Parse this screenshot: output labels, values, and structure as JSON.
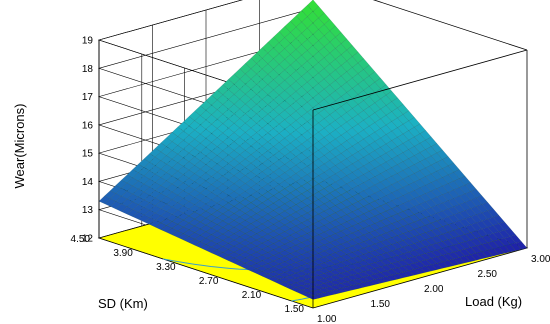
{
  "chart_data": {
    "type": "surface3d",
    "zlabel": "Wear(Microns)",
    "xlabel": "Load (Kg)",
    "ylabel": "SD (Km)",
    "x_ticks": [
      "1.00",
      "1.50",
      "2.00",
      "2.50",
      "3.00"
    ],
    "y_ticks": [
      "1.50",
      "2.10",
      "2.70",
      "3.30",
      "3.90",
      "4.50"
    ],
    "z_ticks": [
      "12",
      "13",
      "14",
      "15",
      "16",
      "17",
      "18",
      "19"
    ],
    "xlim": [
      1.0,
      3.0
    ],
    "ylim": [
      1.5,
      4.5
    ],
    "zlim": [
      12,
      19
    ],
    "surface_corners": [
      {
        "load": 1.0,
        "sd": 1.5,
        "wear": 12.3
      },
      {
        "load": 3.0,
        "sd": 1.5,
        "wear": 12.0
      },
      {
        "load": 1.0,
        "sd": 4.5,
        "wear": 13.3
      },
      {
        "load": 3.0,
        "sd": 4.5,
        "wear": 18.3
      }
    ],
    "colors": {
      "floor": "#ffff00",
      "surface_low": "#1f1fa8",
      "surface_mid": "#1cb0c4",
      "surface_high": "#33e033",
      "mesh": "#0a3a3a",
      "contour": "#3aa0c8"
    },
    "grid": true
  }
}
